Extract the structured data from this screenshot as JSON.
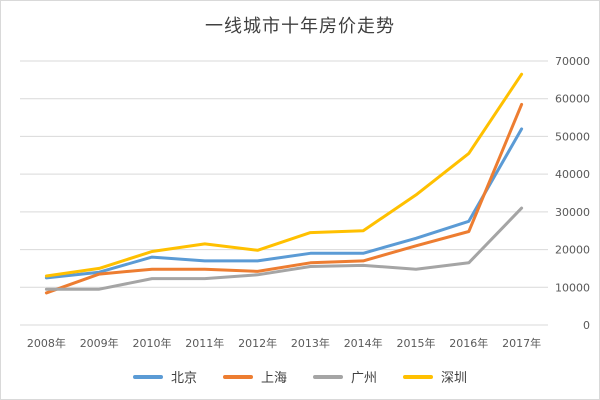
{
  "chart_data": {
    "type": "line",
    "title": "一线城市十年房价走势",
    "xlabel": "",
    "ylabel": "",
    "categories": [
      "2008年",
      "2009年",
      "2010年",
      "2011年",
      "2012年",
      "2013年",
      "2014年",
      "2015年",
      "2016年",
      "2017年"
    ],
    "ylim": [
      0,
      70000
    ],
    "yticks": [
      0,
      10000,
      20000,
      30000,
      40000,
      50000,
      60000,
      70000
    ],
    "ytick_labels": [
      "0",
      "10000",
      "20000",
      "30000",
      "40000",
      "50000",
      "60000",
      "70000"
    ],
    "y_axis_side": "right",
    "grid": true,
    "legend_position": "bottom",
    "series": [
      {
        "name": "北京",
        "color": "#5b9bd5",
        "values": [
          12500,
          14000,
          18000,
          17000,
          17000,
          19000,
          19000,
          23000,
          27500,
          52000
        ]
      },
      {
        "name": "上海",
        "color": "#ed7d31",
        "values": [
          8500,
          13500,
          14800,
          14800,
          14200,
          16500,
          17000,
          21000,
          24800,
          58500
        ]
      },
      {
        "name": "广州",
        "color": "#a5a5a5",
        "values": [
          9500,
          9500,
          12300,
          12300,
          13300,
          15500,
          15800,
          14800,
          16500,
          31000
        ]
      },
      {
        "name": "深圳",
        "color": "#ffc000",
        "values": [
          13000,
          15000,
          19500,
          21500,
          19800,
          24500,
          25000,
          34500,
          45500,
          66500
        ]
      }
    ]
  }
}
